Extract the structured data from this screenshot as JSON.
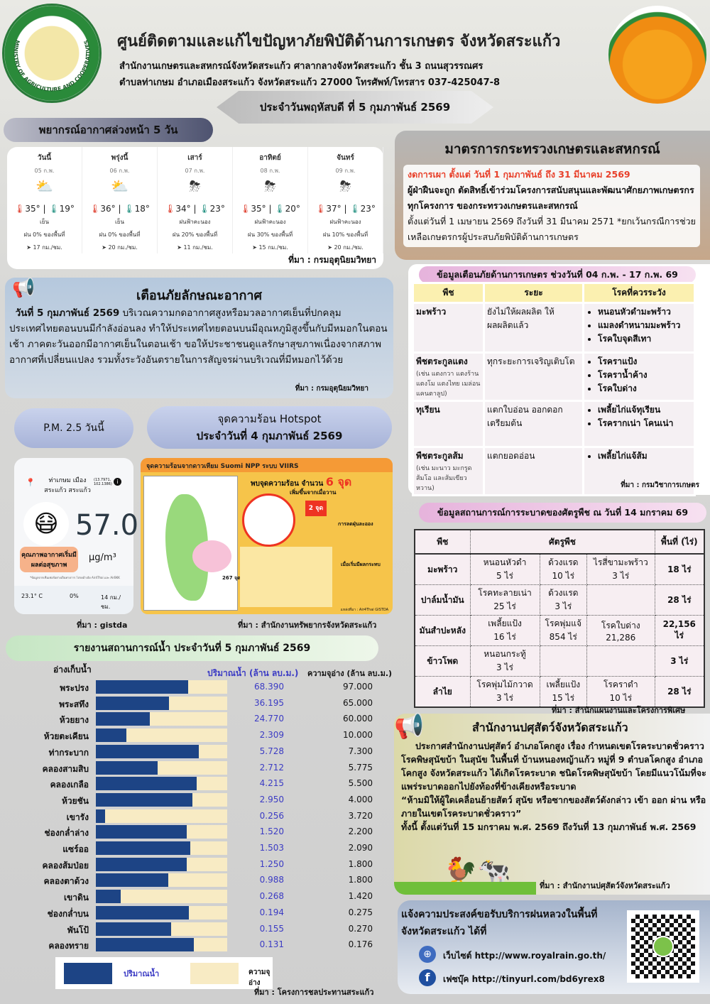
{
  "header": {
    "title": "ศูนย์ติดตามและแก้ไขปัญหาภัยพิบัติด้านการเกษตร จังหวัดสระแก้ว",
    "address_line1": "สำนักงานเกษตรและสหกรณ์จังหวัดสระแก้ว ศาลากลางจังหวัดสระแก้ว ชั้น 3 ถนนสุวรรณศร",
    "address_line2": "ตำบลท่าเกษม อำเภอเมืองสระแก้ว จังหวัดสระแก้ว 27000 โทรศัพท์/โทรสาร 037-425047-8",
    "date_banner": "ประจำวันพฤหัสบดี ที่ 5 กุมภาพันธ์ 2569",
    "left_logo_text": "MINISTRY OF AGRICULTURE AND COOPERATIVES"
  },
  "forecast": {
    "title": "พยากรณ์อากาศล่วงหน้า 5 วัน",
    "source": "ที่มา : กรมอุตุนิยมวิทยา",
    "days": [
      {
        "day": "วันนี้",
        "date": "05 ก.พ.",
        "icon": "partly-cloudy",
        "high": "35°",
        "low": "19°",
        "cond": "เย็น",
        "rain": "ฝน 0% ของพื้นที่",
        "wind": "17 กม./ชม."
      },
      {
        "day": "พรุ่งนี้",
        "date": "06 ก.พ.",
        "icon": "partly-cloudy",
        "high": "36°",
        "low": "18°",
        "cond": "เย็น",
        "rain": "ฝน 0% ของพื้นที่",
        "wind": "20 กม./ชม."
      },
      {
        "day": "เสาร์",
        "date": "07 ก.พ.",
        "icon": "thunderstorm",
        "high": "34°",
        "low": "23°",
        "cond": "ฝนฟ้าคะนอง",
        "rain": "ฝน 20% ของพื้นที่",
        "wind": "11 กม./ชม."
      },
      {
        "day": "อาทิตย์",
        "date": "08 ก.พ.",
        "icon": "thunderstorm",
        "high": "35°",
        "low": "20°",
        "cond": "ฝนฟ้าคะนอง",
        "rain": "ฝน 30% ของพื้นที่",
        "wind": "15 กม./ชม."
      },
      {
        "day": "จันทร์",
        "date": "09 ก.พ.",
        "icon": "thunderstorm",
        "high": "37°",
        "low": "23°",
        "cond": "ฝนฟ้าคะนอง",
        "rain": "ฝน 10% ของพื้นที่",
        "wind": "20 กม./ชม."
      }
    ]
  },
  "weather_warning": {
    "title": "เตือนภัยลักษณะอากาศ",
    "date": "วันที่ 5 กุมภาพันธ์ 2569",
    "body": "บริเวณความกดอากาศสูงหรือมวลอากาศเย็นที่ปกคลุมประเทศไทยตอนบนมีกำลังอ่อนลง ทำให้ประเทศไทยตอนบนมีอุณหภูมิสูงขึ้นกับมีหมอกในตอนเช้า ภาคตะวันออกมีอากาศเย็นในตอนเช้า ขอให้ประชาชนดูแลรักษาสุขภาพเนื่องจากสภาพอากาศที่เปลี่ยนแปลง รวมทั้งระวังอันตรายในการสัญจรผ่านบริเวณที่มีหมอกไว้ด้วย",
    "source": "ที่มา : กรมอุตุนิยมวิทยา"
  },
  "pm25": {
    "title": "P.M. 2.5 วันนี้",
    "location": "ท่าเกษม เมือง สระแก้ว สระแก้ว",
    "coords": "(13.7971, 102.1386)",
    "value": "57.0",
    "unit": "µg/m³",
    "status": "คุณภาพอากาศเริ่มมีผลต่อสุขภาพ",
    "status_color": "#f6b28a",
    "note": "*ข้อมูลจากเซ็นเซอร์อย่างเป็นทางการ โปรดอ้างอิง Air4Thai และ AirBKK",
    "temp": "23.1° C",
    "humidity": "0%",
    "wind": "14 กม./ชม.",
    "source": "ที่มา : gistda"
  },
  "hotspot": {
    "title_line1": "จุดความร้อน Hotspot",
    "title_line2": "ประจำวันที่ 4 กุมภาพันธ์ 2569",
    "image_title": "จุดความร้อนจากดาวเทียม Suomi NPP ระบบ VIIRS",
    "found": "พบจุดความร้อน จำนวน",
    "count": "6 จุด",
    "increase_label": "เพิ่มขึ้นจากเมื่อวาน",
    "increase": "2 จุด",
    "national": "267 จุด",
    "reduce_title": "การลดฝุ่นละออง",
    "protect_title": "เมื่อเริ่มมีผลกระทบ",
    "source_in_image": "แหล่งที่มา : Air4Thai GISTDA",
    "source": "ที่มา : สำนักงานทรัพยากรจังหวัดสระแก้ว"
  },
  "water": {
    "title": "รายงานสถานการณ์น้ำ ประจำวันที่ 5 กุมภาพันธ์ 2569",
    "col_name": "อ่างเก็บน้ำ",
    "col_amount": "ปริมาณน้ำ (ล้าน ลบ.ม.)",
    "col_capacity": "ความจุอ่าง (ล้าน ลบ.ม.)",
    "legend_amount": "ปริมาณน้ำ",
    "legend_capacity": "ความจุอ่าง",
    "colors": {
      "amount": "#1d4485",
      "capacity": "#f8ebc4"
    },
    "source": "ที่มา : โครงการชลประทานสระแก้ว",
    "rows": [
      [
        "พระปรง",
        "68.390",
        "97.000"
      ],
      [
        "พระสทึง",
        "36.195",
        "65.000"
      ],
      [
        "ห้วยยาง",
        "24.770",
        "60.000"
      ],
      [
        "ห้วยตะเคียน",
        "2.309",
        "10.000"
      ],
      [
        "ท่ากระบาก",
        "5.728",
        "7.300"
      ],
      [
        "คลองสามสิบ",
        "2.712",
        "5.775"
      ],
      [
        "คลองเกลือ",
        "4.215",
        "5.500"
      ],
      [
        "ห้วยชัน",
        "2.950",
        "4.000"
      ],
      [
        "เขารัง",
        "0.256",
        "3.720"
      ],
      [
        "ช่องกล่ำล่าง",
        "1.520",
        "2.200"
      ],
      [
        "แซร์ออ",
        "1.503",
        "2.090"
      ],
      [
        "คลองส้มป่อย",
        "1.250",
        "1.800"
      ],
      [
        "คลองตาด้วง",
        "0.988",
        "1.800"
      ],
      [
        "เขาดิน",
        "0.268",
        "1.420"
      ],
      [
        "ช่องกล่ำบน",
        "0.194",
        "0.275"
      ],
      [
        "พันโป้",
        "0.155",
        "0.270"
      ],
      [
        "คลองทราย",
        "0.131",
        "0.176"
      ]
    ]
  },
  "measures": {
    "title": "มาตรการกระทรวงเกษตรและสหกรณ์",
    "line1": "งดการเผา ตั้งแต่ วันที่ 1 กุมภาพันธ์ ถึง 31 มีนาคม 2569",
    "line2": "ผู้ฝ่าฝืนจะถูก ตัดสิทธิ์เข้าร่วมโครงการสนับสนุนและพัฒนาศักยภาพเกษตรกรทุกโครงการ ของกระทรวงเกษตรและสหกรณ์",
    "line3": "ตั้งแต่วันที่ 1 เมษายน 2569 ถึงวันที่ 31 มีนาคม 2571 *ยกเว้นกรณีการช่วยเหลือเกษตรกรผู้ประสบภัยพิบัติด้านการเกษตร"
  },
  "agri_warning": {
    "title": "ข้อมูลเตือนภัยด้านการเกษตร ช่วงวันที่ 04 ก.พ. - 17 ก.พ. 69",
    "headers": [
      "พืช",
      "ระยะ",
      "โรคที่ควรระวัง"
    ],
    "source": "ที่มา : กรมวิชาการเกษตร",
    "rows": [
      {
        "crop": "มะพร้าว",
        "note": "",
        "stage": "ยังไม่ให้ผลผลิต ให้ผลผลิตแล้ว",
        "diseases": [
          "หนอนหัวดำมะพร้าว",
          "แมลงดำหนามมะพร้าว",
          "โรคใบจุดสีเทา"
        ]
      },
      {
        "crop": "พืชตระกูลแตง",
        "note": "(เช่น แตงกวา แตงร้าน แตงโม แตงไทย เมล่อน แคนตาลูป)",
        "stage": "ทุกระยะการเจริญเติบโต",
        "diseases": [
          "โรคราแป้ง",
          "โรคราน้ำค้าง",
          "โรคใบด่าง"
        ]
      },
      {
        "crop": "ทุเรียน",
        "note": "",
        "stage": "แตกใบอ่อน ออกดอก เตรียมต้น",
        "diseases": [
          "เพลี้ยไก่แจ้ทุเรียน",
          "โรครากเน่า โคนเน่า"
        ]
      },
      {
        "crop": "พืชตระกูลส้ม",
        "note": "(เช่น มะนาว มะกรูด ส้มโอ และส้มเขียวหวาน)",
        "stage": "แตกยอดอ่อน",
        "diseases": [
          "เพลี้ยไก่แจ้ส้ม"
        ]
      }
    ]
  },
  "pest": {
    "title": "ข้อมูลสถานการณ์การระบาดของศัตรูพืช ณ วันที่ 14 มกราคม 69",
    "headers": [
      "พืช",
      "ศัตรูพืช",
      "พื้นที่ (ไร่)"
    ],
    "source": "ที่มา : สำนักแผนงานและโครงการพิเศษ",
    "rows": [
      {
        "crop": "มะพร้าว",
        "pests": [
          [
            "หนอนหัวดำ",
            "5 ไร่"
          ],
          [
            "ด้วงแรด",
            "10 ไร่"
          ],
          [
            "ไรสี่ขามะพร้าว",
            "3 ไร่"
          ]
        ],
        "area": "18 ไร่"
      },
      {
        "crop": "ปาล์มน้ำมัน",
        "pests": [
          [
            "โรคทะลายเน่า",
            "25 ไร่"
          ],
          [
            "ด้วงแรด",
            "3 ไร่"
          ],
          [
            "",
            ""
          ]
        ],
        "area": "28 ไร่"
      },
      {
        "crop": "มันสำปะหลัง",
        "pests": [
          [
            "เพลี้ยแป้ง",
            "16 ไร่"
          ],
          [
            "โรคพุ่มแจ้",
            "854 ไร่"
          ],
          [
            "โรคใบด่าง",
            "21,286"
          ]
        ],
        "area": "22,156 ไร่"
      },
      {
        "crop": "ข้าวโพด",
        "pests": [
          [
            "หนอนกระทู้",
            "3 ไร่"
          ],
          [
            "",
            ""
          ],
          [
            "",
            ""
          ]
        ],
        "area": "3 ไร่"
      },
      {
        "crop": "ลำไย",
        "pests": [
          [
            "โรคพุ่มไม้กวาด",
            "3 ไร่"
          ],
          [
            "เพลี้ยแป้ง",
            "15 ไร่"
          ],
          [
            "โรคราดำ",
            "10 ไร่"
          ]
        ],
        "area": "28 ไร่"
      }
    ]
  },
  "livestock": {
    "title": "สำนักงานปศุสัตว์จังหวัดสระแก้ว",
    "body": "ประกาศสำนักงานปศุสัตว์ อำเภอโคกสูง เรื่อง กำหนดเขตโรคระบาดชั่วคราว โรคพิษสุนัขบ้า ในสุนัข ในพื้นที่ บ้านหนองหญ้าแก้ว หมู่ที่ 9 ตำบลโคกสูง อำเภอโคกสูง จังหวัดสระแก้ว ได้เกิดโรคระบาด ชนิดโรคพิษสุนัขบ้า โดยมีแนวโน้มที่จะแพร่ระบาดออกไปยังท้องที่ข้างเคียงหรือระบาด",
    "quote": "“ห้ามมิให้ผู้ใดเคลื่อนย้ายสัตว์ สุนัข หรือซากของสัตว์ดังกล่าว เข้า ออก ผ่าน หรือภายในเขตโรคระบาดชั่วคราว”",
    "period": "ทั้งนี้ ตั้งแต่วันที่ 15 มกราคม พ.ศ. 2569 ถึงวันที่ 13 กุมภาพันธ์ พ.ศ. 2569",
    "source": "ที่มา : สำนักงานปศุสัตว์จังหวัดสระแก้ว"
  },
  "royal_rain": {
    "title": "แจ้งความประสงค์ขอรับบริการฝนหลวงในพื้นที่จังหวัดสระแก้ว ได้ที่",
    "website": "เว็บไซต์ http://www.royalrain.go.th/",
    "facebook": "เฟซบุ๊ค http://tinyurl.com/bd6yrex8"
  }
}
